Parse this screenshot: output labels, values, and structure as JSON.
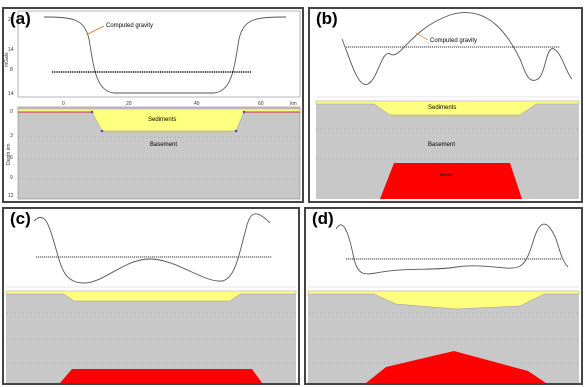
{
  "panels": [
    {
      "tag": "(a)",
      "gravity_label": "Computed gravity",
      "sediments_label": "Sediments",
      "basement_label": "Basement",
      "top_axis_ticks": [
        "20",
        "14",
        "8",
        "14"
      ],
      "x_ticks": [
        "0",
        "20",
        "40",
        "60"
      ],
      "x_unit": "km",
      "depth_ticks": [
        "0",
        "3",
        "6",
        "9",
        "12"
      ],
      "top_axis_label": "mGals",
      "depth_axis_label": "Depth km"
    },
    {
      "tag": "(b)",
      "gravity_label": "Computed gravity",
      "sediments_label": "Sediments",
      "basement_label": "Basement",
      "mantle_label": "Mantle"
    },
    {
      "tag": "(c)"
    },
    {
      "tag": "(d)"
    }
  ],
  "colors": {
    "sediments": "#ffff80",
    "basement": "#c8c8c8",
    "mantle": "#ff0000",
    "gravity_line": "#555555",
    "observed_line": "#000000",
    "arrow": "#e07020"
  }
}
